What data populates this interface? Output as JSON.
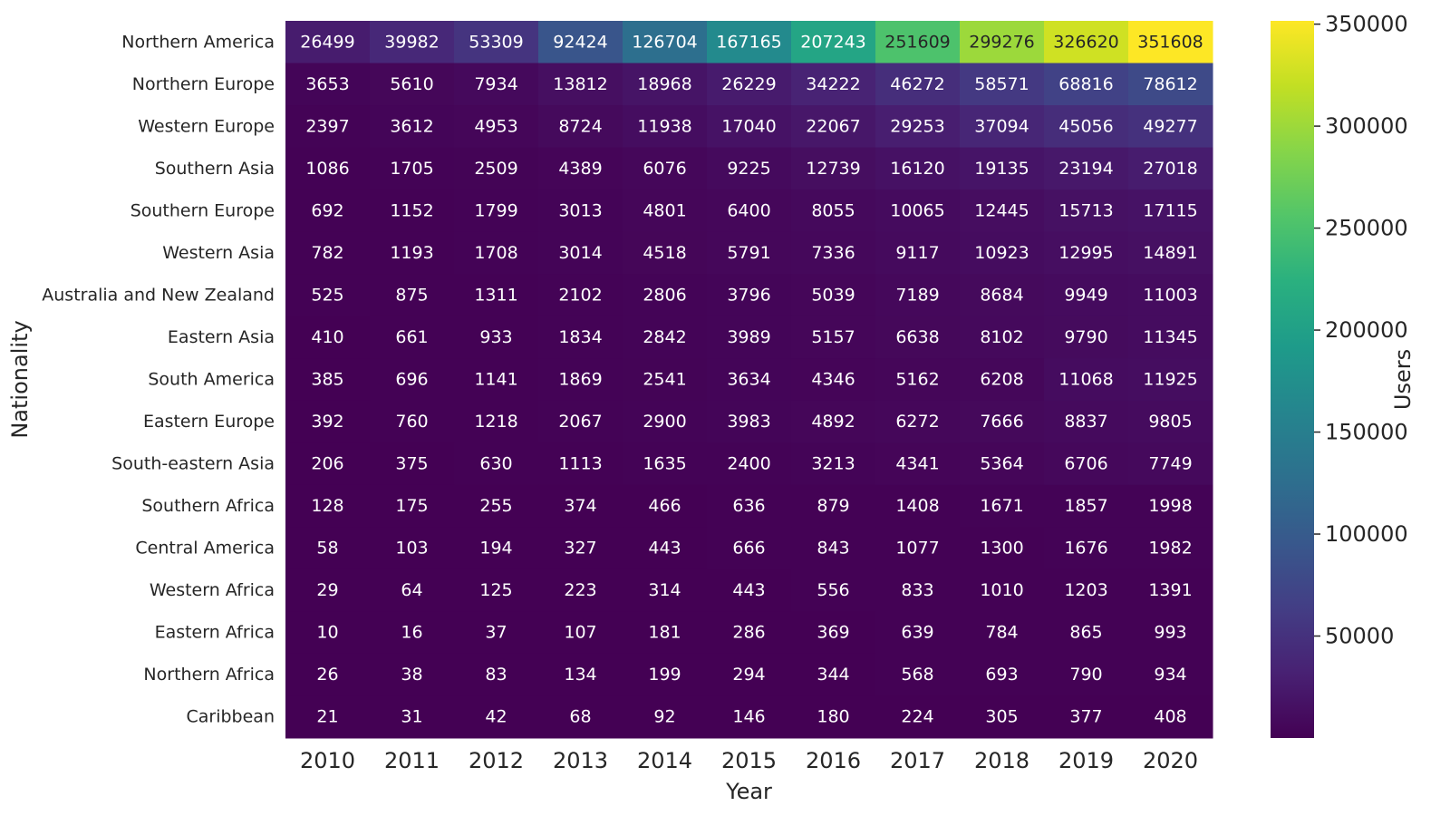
{
  "chart_data": {
    "type": "heatmap",
    "xlabel": "Year",
    "ylabel": "Nationality",
    "colorbar_label": "Users",
    "colormap": "viridis",
    "vmin": 0,
    "vmax": 351608,
    "colorbar_ticks": [
      50000,
      100000,
      150000,
      200000,
      250000,
      300000,
      350000
    ],
    "x": [
      "2010",
      "2011",
      "2012",
      "2013",
      "2014",
      "2015",
      "2016",
      "2017",
      "2018",
      "2019",
      "2020"
    ],
    "y": [
      "Northern America",
      "Northern Europe",
      "Western Europe",
      "Southern Asia",
      "Southern Europe",
      "Western Asia",
      "Australia and New Zealand",
      "Eastern Asia",
      "South America",
      "Eastern Europe",
      "South-eastern Asia",
      "Southern Africa",
      "Central America",
      "Western Africa",
      "Eastern Africa",
      "Northern Africa",
      "Caribbean"
    ],
    "values": [
      [
        26499,
        39982,
        53309,
        92424,
        126704,
        167165,
        207243,
        251609,
        299276,
        326620,
        351608
      ],
      [
        3653,
        5610,
        7934,
        13812,
        18968,
        26229,
        34222,
        46272,
        58571,
        68816,
        78612
      ],
      [
        2397,
        3612,
        4953,
        8724,
        11938,
        17040,
        22067,
        29253,
        37094,
        45056,
        49277
      ],
      [
        1086,
        1705,
        2509,
        4389,
        6076,
        9225,
        12739,
        16120,
        19135,
        23194,
        27018
      ],
      [
        692,
        1152,
        1799,
        3013,
        4801,
        6400,
        8055,
        10065,
        12445,
        15713,
        17115
      ],
      [
        782,
        1193,
        1708,
        3014,
        4518,
        5791,
        7336,
        9117,
        10923,
        12995,
        14891
      ],
      [
        525,
        875,
        1311,
        2102,
        2806,
        3796,
        5039,
        7189,
        8684,
        9949,
        11003
      ],
      [
        410,
        661,
        933,
        1834,
        2842,
        3989,
        5157,
        6638,
        8102,
        9790,
        11345
      ],
      [
        385,
        696,
        1141,
        1869,
        2541,
        3634,
        4346,
        5162,
        6208,
        11068,
        11925
      ],
      [
        392,
        760,
        1218,
        2067,
        2900,
        3983,
        4892,
        6272,
        7666,
        8837,
        9805
      ],
      [
        206,
        375,
        630,
        1113,
        1635,
        2400,
        3213,
        4341,
        5364,
        6706,
        7749
      ],
      [
        128,
        175,
        255,
        374,
        466,
        636,
        879,
        1408,
        1671,
        1857,
        1998
      ],
      [
        58,
        103,
        194,
        327,
        443,
        666,
        843,
        1077,
        1300,
        1676,
        1982
      ],
      [
        29,
        64,
        125,
        223,
        314,
        443,
        556,
        833,
        1010,
        1203,
        1391
      ],
      [
        10,
        16,
        37,
        107,
        181,
        286,
        369,
        639,
        784,
        865,
        993
      ],
      [
        26,
        38,
        83,
        134,
        199,
        294,
        344,
        568,
        693,
        790,
        934
      ],
      [
        21,
        31,
        42,
        68,
        92,
        146,
        180,
        224,
        305,
        377,
        408
      ]
    ]
  }
}
